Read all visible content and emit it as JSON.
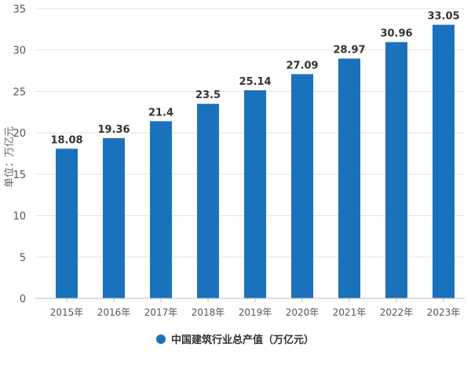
{
  "chart_data": {
    "type": "bar",
    "categories": [
      "2015年",
      "2016年",
      "2017年",
      "2018年",
      "2019年",
      "2020年",
      "2021年",
      "2022年",
      "2023年"
    ],
    "series": [
      {
        "name": "中国建筑行业总产值（万亿元）",
        "values": [
          18.08,
          19.36,
          21.4,
          23.5,
          25.14,
          27.09,
          28.97,
          30.96,
          33.05
        ]
      }
    ],
    "data_labels": [
      "18.08",
      "19.36",
      "21.4",
      "23.5",
      "25.14",
      "27.09",
      "28.97",
      "30.96",
      "33.05"
    ],
    "ylabel": "单位：万亿元",
    "xlabel": "",
    "ylim": [
      0,
      35
    ],
    "yticks": [
      0,
      5,
      10,
      15,
      20,
      25,
      30,
      35
    ],
    "grid": true,
    "legend_position": "bottom",
    "colors": {
      "bar": "#1a72bd",
      "grid": "#e3e3e3",
      "axis": "#bcbcbc",
      "text": "#555555",
      "label": "#333333"
    }
  }
}
